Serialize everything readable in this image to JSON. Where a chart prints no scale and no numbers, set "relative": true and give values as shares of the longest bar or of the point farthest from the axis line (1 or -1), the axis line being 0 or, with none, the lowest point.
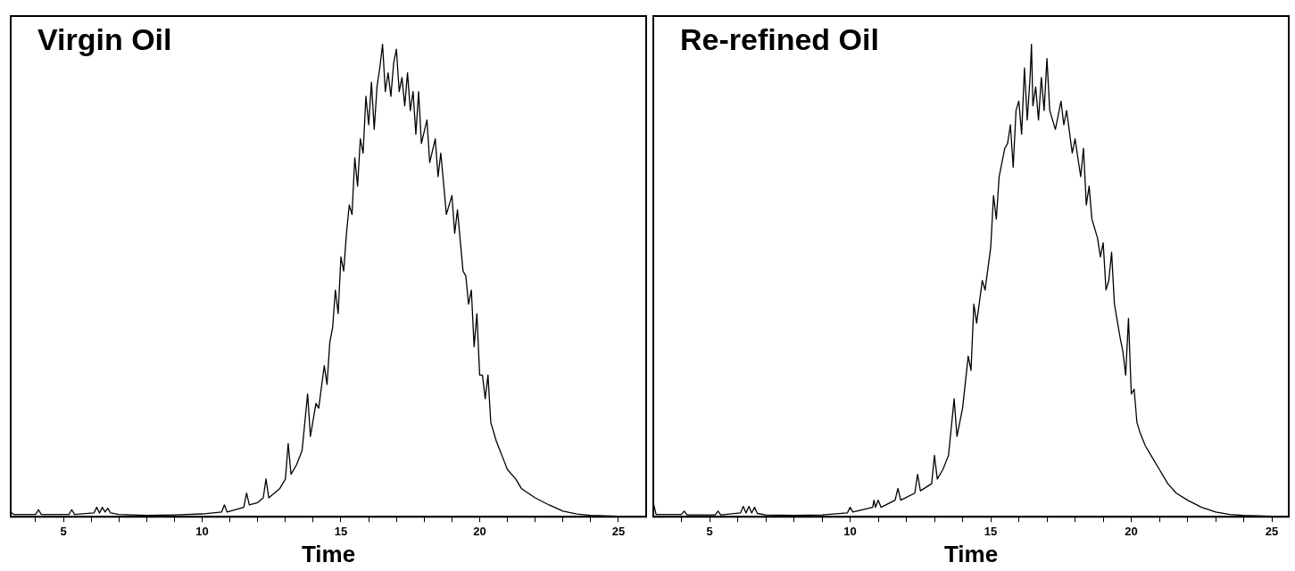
{
  "chart_data": [
    {
      "type": "line",
      "title": "Virgin Oil",
      "xlabel": "Time",
      "relative": true,
      "grid": false,
      "legend": false,
      "marker": "none",
      "line_style": "solid",
      "xlim": [
        3.1,
        26
      ],
      "xticks": [
        {
          "value": 4,
          "label": null
        },
        5,
        {
          "value": 6,
          "label": null
        },
        {
          "value": 7,
          "label": null
        },
        {
          "value": 8,
          "label": null
        },
        {
          "value": 9,
          "label": null
        },
        10,
        {
          "value": 11,
          "label": null
        },
        {
          "value": 12,
          "label": null
        },
        {
          "value": 13,
          "label": null
        },
        {
          "value": 14,
          "label": null
        },
        15,
        {
          "value": 16,
          "label": null
        },
        {
          "value": 17,
          "label": null
        },
        {
          "value": 18,
          "label": null
        },
        {
          "value": 19,
          "label": null
        },
        20,
        {
          "value": 21,
          "label": null
        },
        {
          "value": 22,
          "label": null
        },
        {
          "value": 23,
          "label": null
        },
        {
          "value": 24,
          "label": null
        },
        25
      ],
      "series": [
        {
          "color": "#000000",
          "x": [
            3.1,
            3.2,
            4.0,
            4.1,
            4.2,
            5.2,
            5.3,
            5.4,
            6.1,
            6.2,
            6.3,
            6.4,
            6.5,
            6.6,
            6.7,
            7.0,
            8,
            9,
            10,
            10.7,
            10.8,
            10.9,
            11.5,
            11.6,
            11.7,
            12.0,
            12.2,
            12.3,
            12.4,
            12.8,
            13.0,
            13.1,
            13.2,
            13.4,
            13.6,
            13.8,
            13.9,
            14.1,
            14.2,
            14.4,
            14.5,
            14.6,
            14.7,
            14.8,
            14.9,
            15.0,
            15.1,
            15.2,
            15.3,
            15.4,
            15.5,
            15.6,
            15.7,
            15.8,
            15.9,
            16.0,
            16.1,
            16.2,
            16.3,
            16.4,
            16.5,
            16.6,
            16.7,
            16.8,
            16.9,
            17.0,
            17.1,
            17.2,
            17.3,
            17.4,
            17.5,
            17.6,
            17.7,
            17.8,
            17.9,
            18.1,
            18.2,
            18.4,
            18.5,
            18.6,
            18.8,
            19.0,
            19.1,
            19.2,
            19.4,
            19.5,
            19.6,
            19.7,
            19.8,
            19.9,
            20.0,
            20.1,
            20.2,
            20.3,
            20.4,
            20.6,
            20.8,
            21.0,
            21.3,
            21.5,
            22.0,
            22.5,
            23.0,
            23.5,
            24,
            25,
            26
          ],
          "values": [
            0.01,
            0.005,
            0.005,
            0.015,
            0.005,
            0.005,
            0.015,
            0.005,
            0.008,
            0.02,
            0.008,
            0.02,
            0.01,
            0.018,
            0.008,
            0.005,
            0.003,
            0.004,
            0.006,
            0.01,
            0.025,
            0.01,
            0.02,
            0.05,
            0.025,
            0.03,
            0.04,
            0.08,
            0.04,
            0.06,
            0.08,
            0.155,
            0.09,
            0.11,
            0.14,
            0.26,
            0.17,
            0.24,
            0.23,
            0.32,
            0.28,
            0.37,
            0.4,
            0.48,
            0.43,
            0.55,
            0.52,
            0.6,
            0.66,
            0.64,
            0.76,
            0.7,
            0.8,
            0.77,
            0.89,
            0.83,
            0.92,
            0.82,
            0.91,
            0.95,
            1.0,
            0.9,
            0.94,
            0.89,
            0.96,
            0.99,
            0.9,
            0.93,
            0.87,
            0.94,
            0.86,
            0.9,
            0.81,
            0.9,
            0.79,
            0.84,
            0.75,
            0.8,
            0.72,
            0.77,
            0.64,
            0.68,
            0.6,
            0.65,
            0.52,
            0.51,
            0.45,
            0.48,
            0.36,
            0.43,
            0.3,
            0.3,
            0.25,
            0.3,
            0.2,
            0.16,
            0.13,
            0.1,
            0.08,
            0.06,
            0.04,
            0.025,
            0.012,
            0.006,
            0.003,
            0.001,
            0.001
          ]
        }
      ]
    },
    {
      "type": "line",
      "title": "Re-refined Oil",
      "xlabel": "Time",
      "relative": true,
      "grid": false,
      "legend": false,
      "marker": "none",
      "line_style": "solid",
      "xlim": [
        3.0,
        25.6
      ],
      "xticks": [
        {
          "value": 4,
          "label": null
        },
        5,
        {
          "value": 6,
          "label": null
        },
        {
          "value": 7,
          "label": null
        },
        {
          "value": 8,
          "label": null
        },
        {
          "value": 9,
          "label": null
        },
        10,
        {
          "value": 11,
          "label": null
        },
        {
          "value": 12,
          "label": null
        },
        {
          "value": 13,
          "label": null
        },
        {
          "value": 14,
          "label": null
        },
        15,
        {
          "value": 16,
          "label": null
        },
        {
          "value": 17,
          "label": null
        },
        {
          "value": 18,
          "label": null
        },
        {
          "value": 19,
          "label": null
        },
        20,
        {
          "value": 21,
          "label": null
        },
        {
          "value": 22,
          "label": null
        },
        {
          "value": 23,
          "label": null
        },
        {
          "value": 24,
          "label": null
        },
        25
      ],
      "series": [
        {
          "color": "#000000",
          "x": [
            3.0,
            3.1,
            4.0,
            4.1,
            4.2,
            5.2,
            5.3,
            5.4,
            6.1,
            6.2,
            6.3,
            6.4,
            6.5,
            6.6,
            6.7,
            7,
            8,
            9,
            9.9,
            10.0,
            10.1,
            10.8,
            10.85,
            10.9,
            11.0,
            11.1,
            11.6,
            11.7,
            11.8,
            12.3,
            12.4,
            12.5,
            12.9,
            13.0,
            13.1,
            13.3,
            13.5,
            13.7,
            13.8,
            14.0,
            14.2,
            14.3,
            14.4,
            14.5,
            14.7,
            14.8,
            15.0,
            15.1,
            15.2,
            15.3,
            15.4,
            15.5,
            15.6,
            15.7,
            15.8,
            15.9,
            16.0,
            16.1,
            16.2,
            16.3,
            16.4,
            16.45,
            16.5,
            16.6,
            16.7,
            16.8,
            16.9,
            17.0,
            17.1,
            17.3,
            17.5,
            17.6,
            17.7,
            17.9,
            18.0,
            18.2,
            18.3,
            18.4,
            18.5,
            18.6,
            18.8,
            18.9,
            19.0,
            19.1,
            19.2,
            19.3,
            19.4,
            19.6,
            19.7,
            19.8,
            19.9,
            20.0,
            20.1,
            20.2,
            20.3,
            20.5,
            20.7,
            21.0,
            21.3,
            21.6,
            22,
            22.5,
            23,
            23.5,
            24,
            25,
            25.6
          ],
          "values": [
            0.03,
            0.005,
            0.005,
            0.012,
            0.004,
            0.004,
            0.012,
            0.004,
            0.008,
            0.022,
            0.008,
            0.022,
            0.008,
            0.02,
            0.007,
            0.004,
            0.003,
            0.004,
            0.008,
            0.02,
            0.01,
            0.02,
            0.035,
            0.02,
            0.035,
            0.02,
            0.035,
            0.06,
            0.035,
            0.05,
            0.09,
            0.055,
            0.07,
            0.13,
            0.08,
            0.1,
            0.13,
            0.25,
            0.17,
            0.23,
            0.34,
            0.31,
            0.45,
            0.41,
            0.5,
            0.48,
            0.57,
            0.68,
            0.63,
            0.72,
            0.75,
            0.78,
            0.79,
            0.83,
            0.74,
            0.86,
            0.88,
            0.81,
            0.95,
            0.84,
            0.93,
            1.0,
            0.87,
            0.91,
            0.84,
            0.93,
            0.86,
            0.97,
            0.86,
            0.82,
            0.88,
            0.83,
            0.86,
            0.77,
            0.8,
            0.72,
            0.78,
            0.66,
            0.7,
            0.63,
            0.59,
            0.55,
            0.58,
            0.48,
            0.5,
            0.56,
            0.45,
            0.38,
            0.35,
            0.3,
            0.42,
            0.26,
            0.27,
            0.2,
            0.18,
            0.15,
            0.13,
            0.1,
            0.07,
            0.05,
            0.035,
            0.02,
            0.01,
            0.005,
            0.003,
            0.001,
            0.001
          ]
        }
      ]
    }
  ]
}
